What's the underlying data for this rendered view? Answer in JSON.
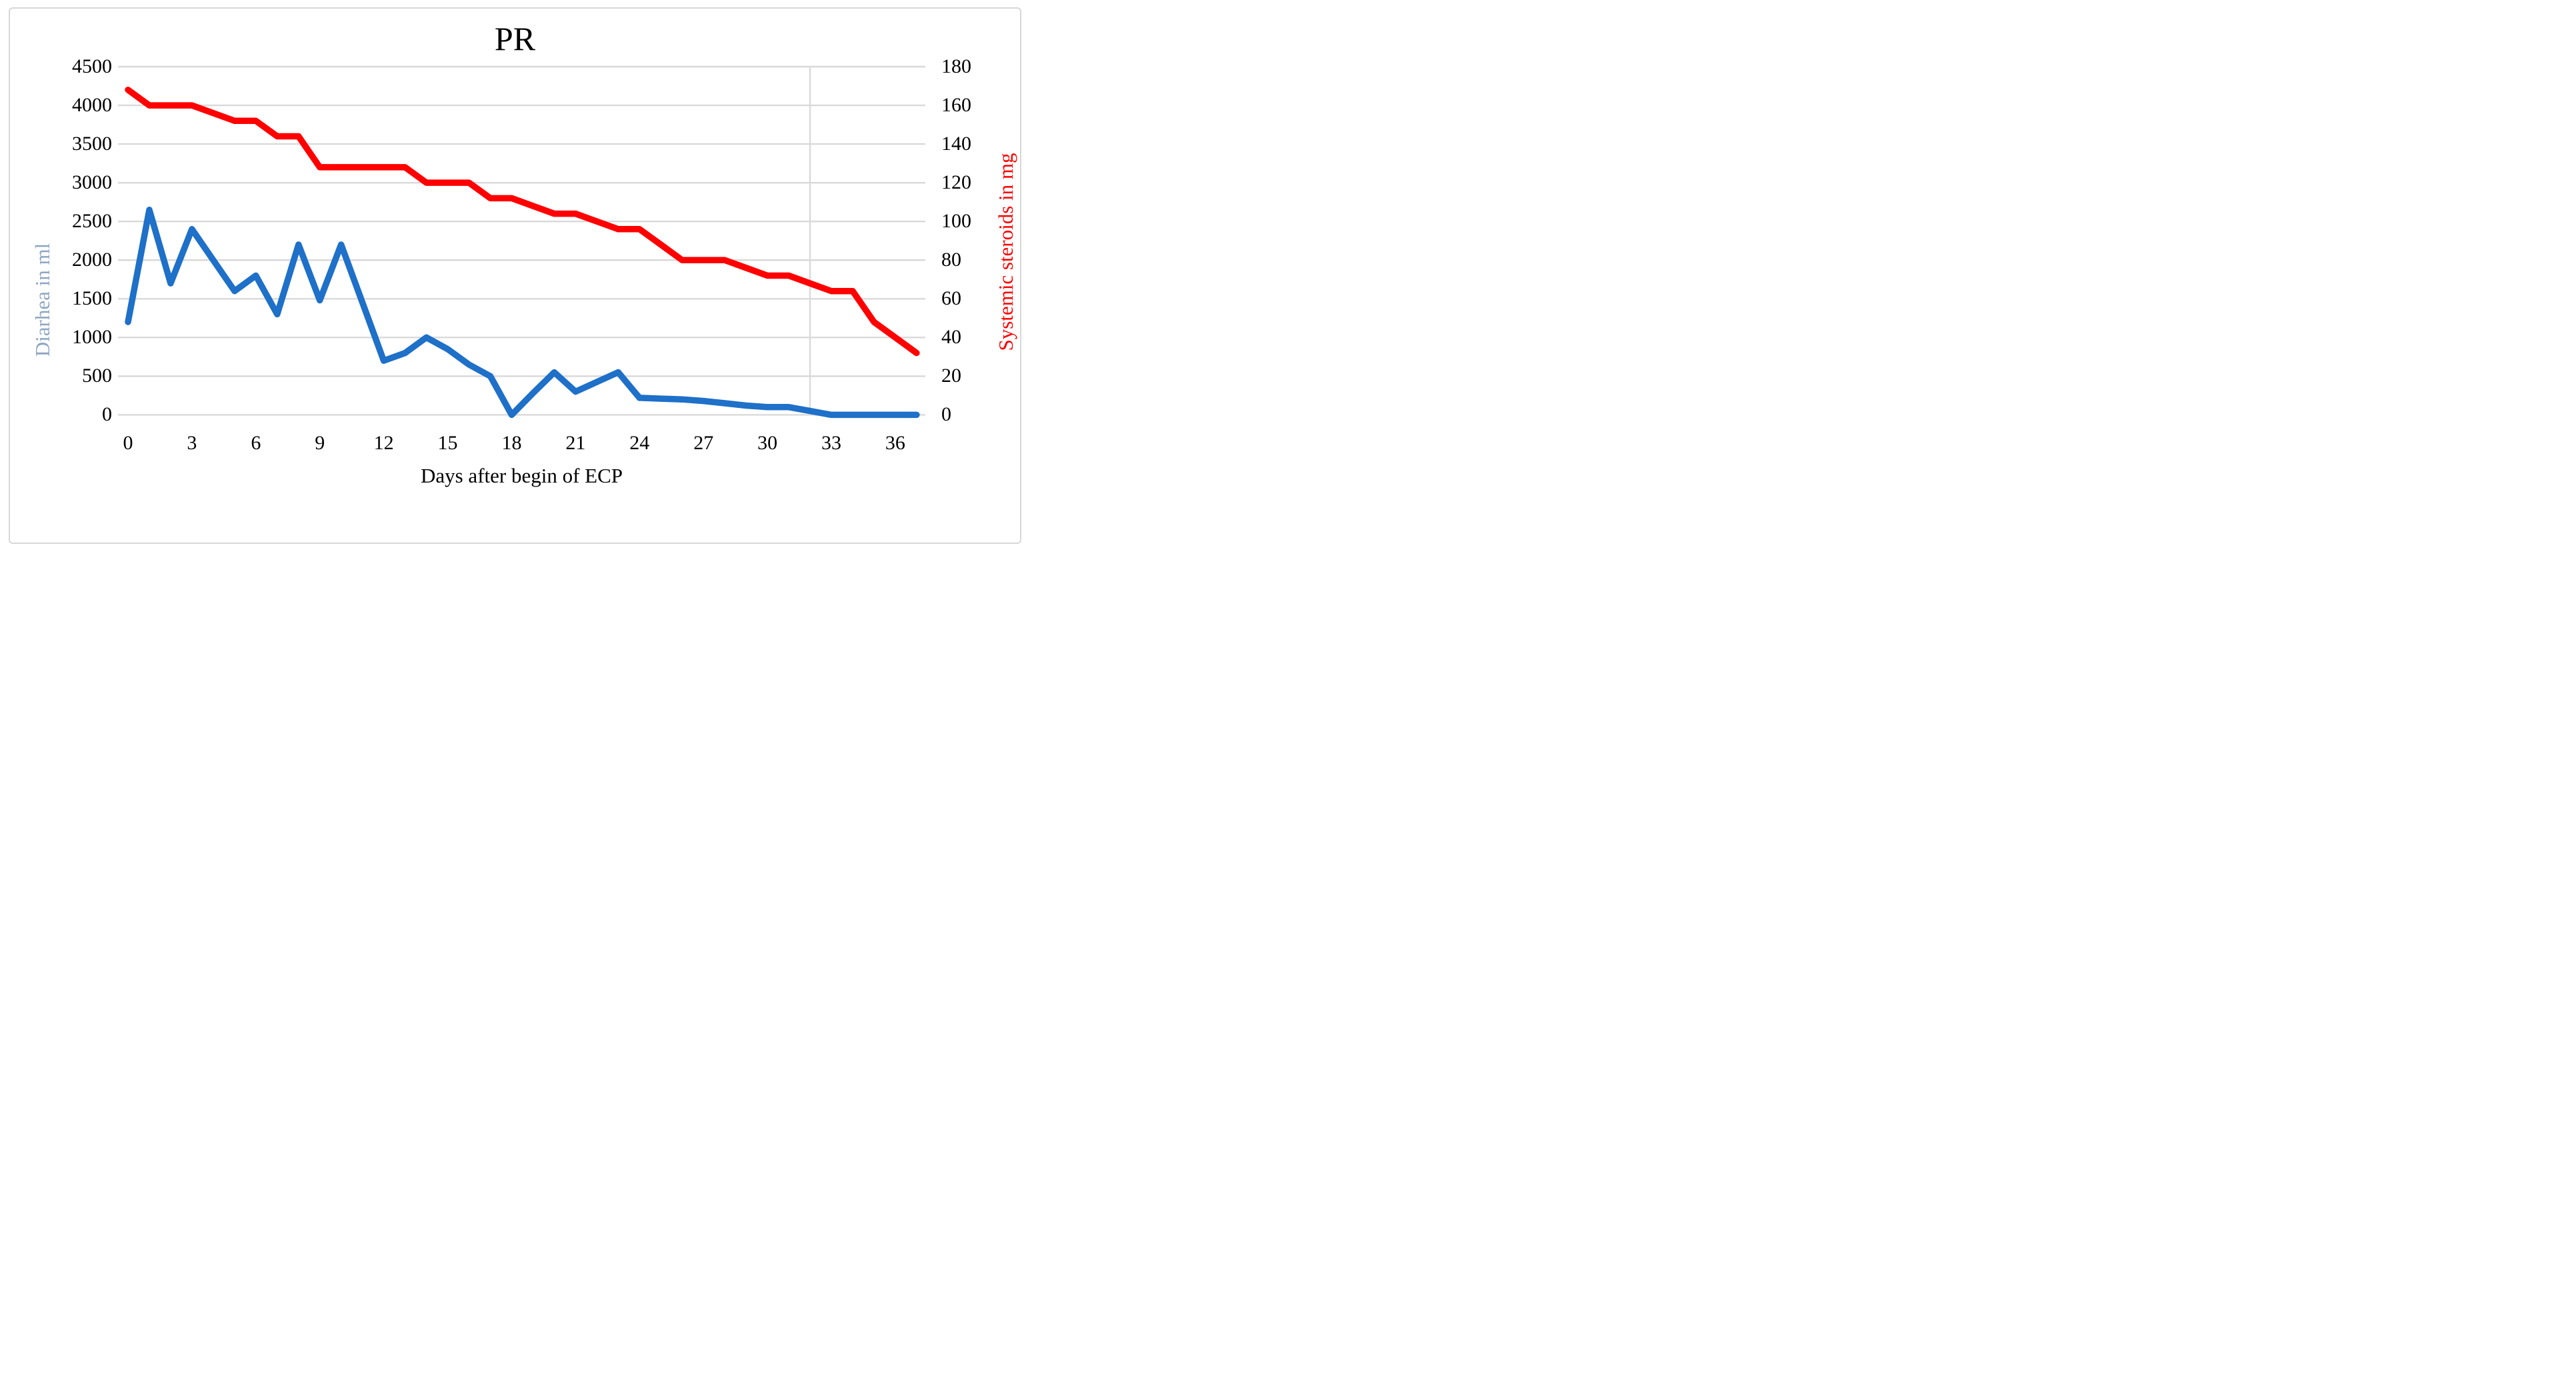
{
  "title": "PR",
  "axes": {
    "x": {
      "title": "Days after begin of ECP",
      "tick_labels": [
        "0",
        "3",
        "6",
        "9",
        "12",
        "15",
        "18",
        "21",
        "24",
        "27",
        "30",
        "33",
        "36"
      ]
    },
    "y_left": {
      "title": "Diarhea in ml",
      "tick_labels": [
        "4500",
        "4000",
        "3500",
        "3000",
        "2500",
        "2000",
        "1500",
        "1000",
        "500",
        "0"
      ]
    },
    "y_right": {
      "title": "Systemic steroids in mg",
      "tick_labels": [
        "180",
        "160",
        "140",
        "120",
        "100",
        "80",
        "60",
        "40",
        "20",
        "0"
      ]
    }
  },
  "chart_data": {
    "type": "line",
    "title": "PR",
    "xlabel": "Days after begin of ECP",
    "ylabel_left": "Diarhea in ml",
    "ylabel_right": "Systemic steroids in mg",
    "x": [
      0,
      1,
      2,
      3,
      4,
      5,
      6,
      7,
      8,
      9,
      10,
      11,
      12,
      13,
      14,
      15,
      16,
      17,
      18,
      19,
      20,
      21,
      22,
      23,
      24,
      25,
      26,
      27,
      28,
      29,
      30,
      31,
      32,
      33,
      34,
      35,
      36,
      37
    ],
    "series": [
      {
        "name": "Diarhea in ml",
        "yaxis": "left",
        "color": "#1E70C8",
        "values": [
          1200,
          2650,
          1700,
          2400,
          2000,
          1600,
          1800,
          1300,
          2200,
          1480,
          2200,
          1450,
          700,
          800,
          1000,
          850,
          650,
          500,
          0,
          280,
          550,
          300,
          425,
          550,
          220,
          210,
          200,
          180,
          150,
          120,
          100,
          100,
          50,
          0,
          0,
          0,
          0,
          0
        ]
      },
      {
        "name": "Systemic steroids in mg",
        "yaxis": "right",
        "color": "#FF0000",
        "values": [
          168,
          160,
          160,
          160,
          156,
          152,
          152,
          144,
          144,
          128,
          128,
          128,
          128,
          128,
          120,
          120,
          120,
          112,
          112,
          108,
          104,
          104,
          100,
          96,
          96,
          88,
          80,
          80,
          80,
          76,
          72,
          72,
          68,
          64,
          64,
          48,
          40,
          32
        ]
      }
    ],
    "xlim": [
      0,
      37
    ],
    "x_ticks": [
      0,
      3,
      6,
      9,
      12,
      15,
      18,
      21,
      24,
      27,
      30,
      33,
      36
    ],
    "ylim_left": [
      0,
      4500
    ],
    "ytick_step_left": 500,
    "ylim_right": [
      0,
      180
    ],
    "ytick_step_right": 20,
    "grid": "horizontal",
    "extra_vertical_gridline_at_x": 32,
    "legend": "none"
  },
  "colors": {
    "diarrhea_line": "#1E70C8",
    "steroids_line": "#FF0000",
    "y_left_title_color": "#8EA5C2",
    "y_right_title_color": "#FF0000",
    "gridline": "#D9D9D9",
    "frame_border": "#D7D7D7",
    "text": "#000000",
    "background": "#FFFFFF"
  }
}
